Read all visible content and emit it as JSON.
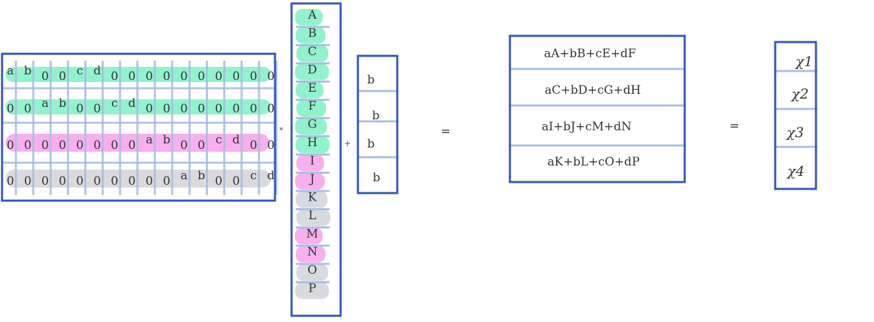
{
  "colors": {
    "box_border": "#3355bb",
    "grid_line": "#a8bfe0",
    "highlight_green": "#7ff0c4",
    "highlight_pink": "#f6a2ea",
    "highlight_gray": "#d2d4da",
    "bias_last": "#2f56b0",
    "equals_pink": "#cc66cc"
  },
  "matrix": {
    "rows": [
      {
        "highlight": "green",
        "cells": [
          "a",
          "b",
          "0",
          "0",
          "c",
          "d",
          "0",
          "0",
          "0",
          "0",
          "0",
          "0",
          "0",
          "0",
          "0",
          "0"
        ]
      },
      {
        "highlight": "green",
        "cells": [
          "0",
          "0",
          "a",
          "b",
          "0",
          "0",
          "c",
          "d",
          "0",
          "0",
          "0",
          "0",
          "0",
          "0",
          "0",
          "0"
        ]
      },
      {
        "highlight": "pink",
        "cells": [
          "0",
          "0",
          "0",
          "0",
          "0",
          "0",
          "0",
          "0",
          "a",
          "b",
          "0",
          "0",
          "c",
          "d",
          "0",
          "0"
        ]
      },
      {
        "highlight": "gray",
        "cells": [
          "0",
          "0",
          "0",
          "0",
          "0",
          "0",
          "0",
          "0",
          "0",
          "0",
          "a",
          "b",
          "0",
          "0",
          "c",
          "d"
        ]
      }
    ]
  },
  "operators": {
    "multiply": "*",
    "plus": "+",
    "equals1": "=",
    "equals2": "="
  },
  "input_vector": {
    "entries": [
      {
        "label": "A",
        "highlight": "green"
      },
      {
        "label": "B",
        "highlight": "green"
      },
      {
        "label": "C",
        "highlight": "green"
      },
      {
        "label": "D",
        "highlight": "green"
      },
      {
        "label": "E",
        "highlight": "green"
      },
      {
        "label": "F",
        "highlight": "green"
      },
      {
        "label": "G",
        "highlight": "green"
      },
      {
        "label": "H",
        "highlight": "green"
      },
      {
        "label": "I",
        "highlight": "pink"
      },
      {
        "label": "J",
        "highlight": "pink"
      },
      {
        "label": "K",
        "highlight": "gray"
      },
      {
        "label": "L",
        "highlight": "gray"
      },
      {
        "label": "M",
        "highlight": "pink"
      },
      {
        "label": "N",
        "highlight": "pink"
      },
      {
        "label": "O",
        "highlight": "gray"
      },
      {
        "label": "P",
        "highlight": "gray"
      }
    ]
  },
  "bias_vector": {
    "entries": [
      "b",
      "b",
      "b",
      "b"
    ]
  },
  "result_vector": {
    "entries": [
      "aA+bB+cE+dF",
      "aC+bD+cG+dH",
      "aI+bJ+cM+dN",
      "aK+bL+cO+dP"
    ]
  },
  "output_vector": {
    "entries": [
      "χ1",
      "χ2",
      "χ3",
      "χ4"
    ]
  }
}
